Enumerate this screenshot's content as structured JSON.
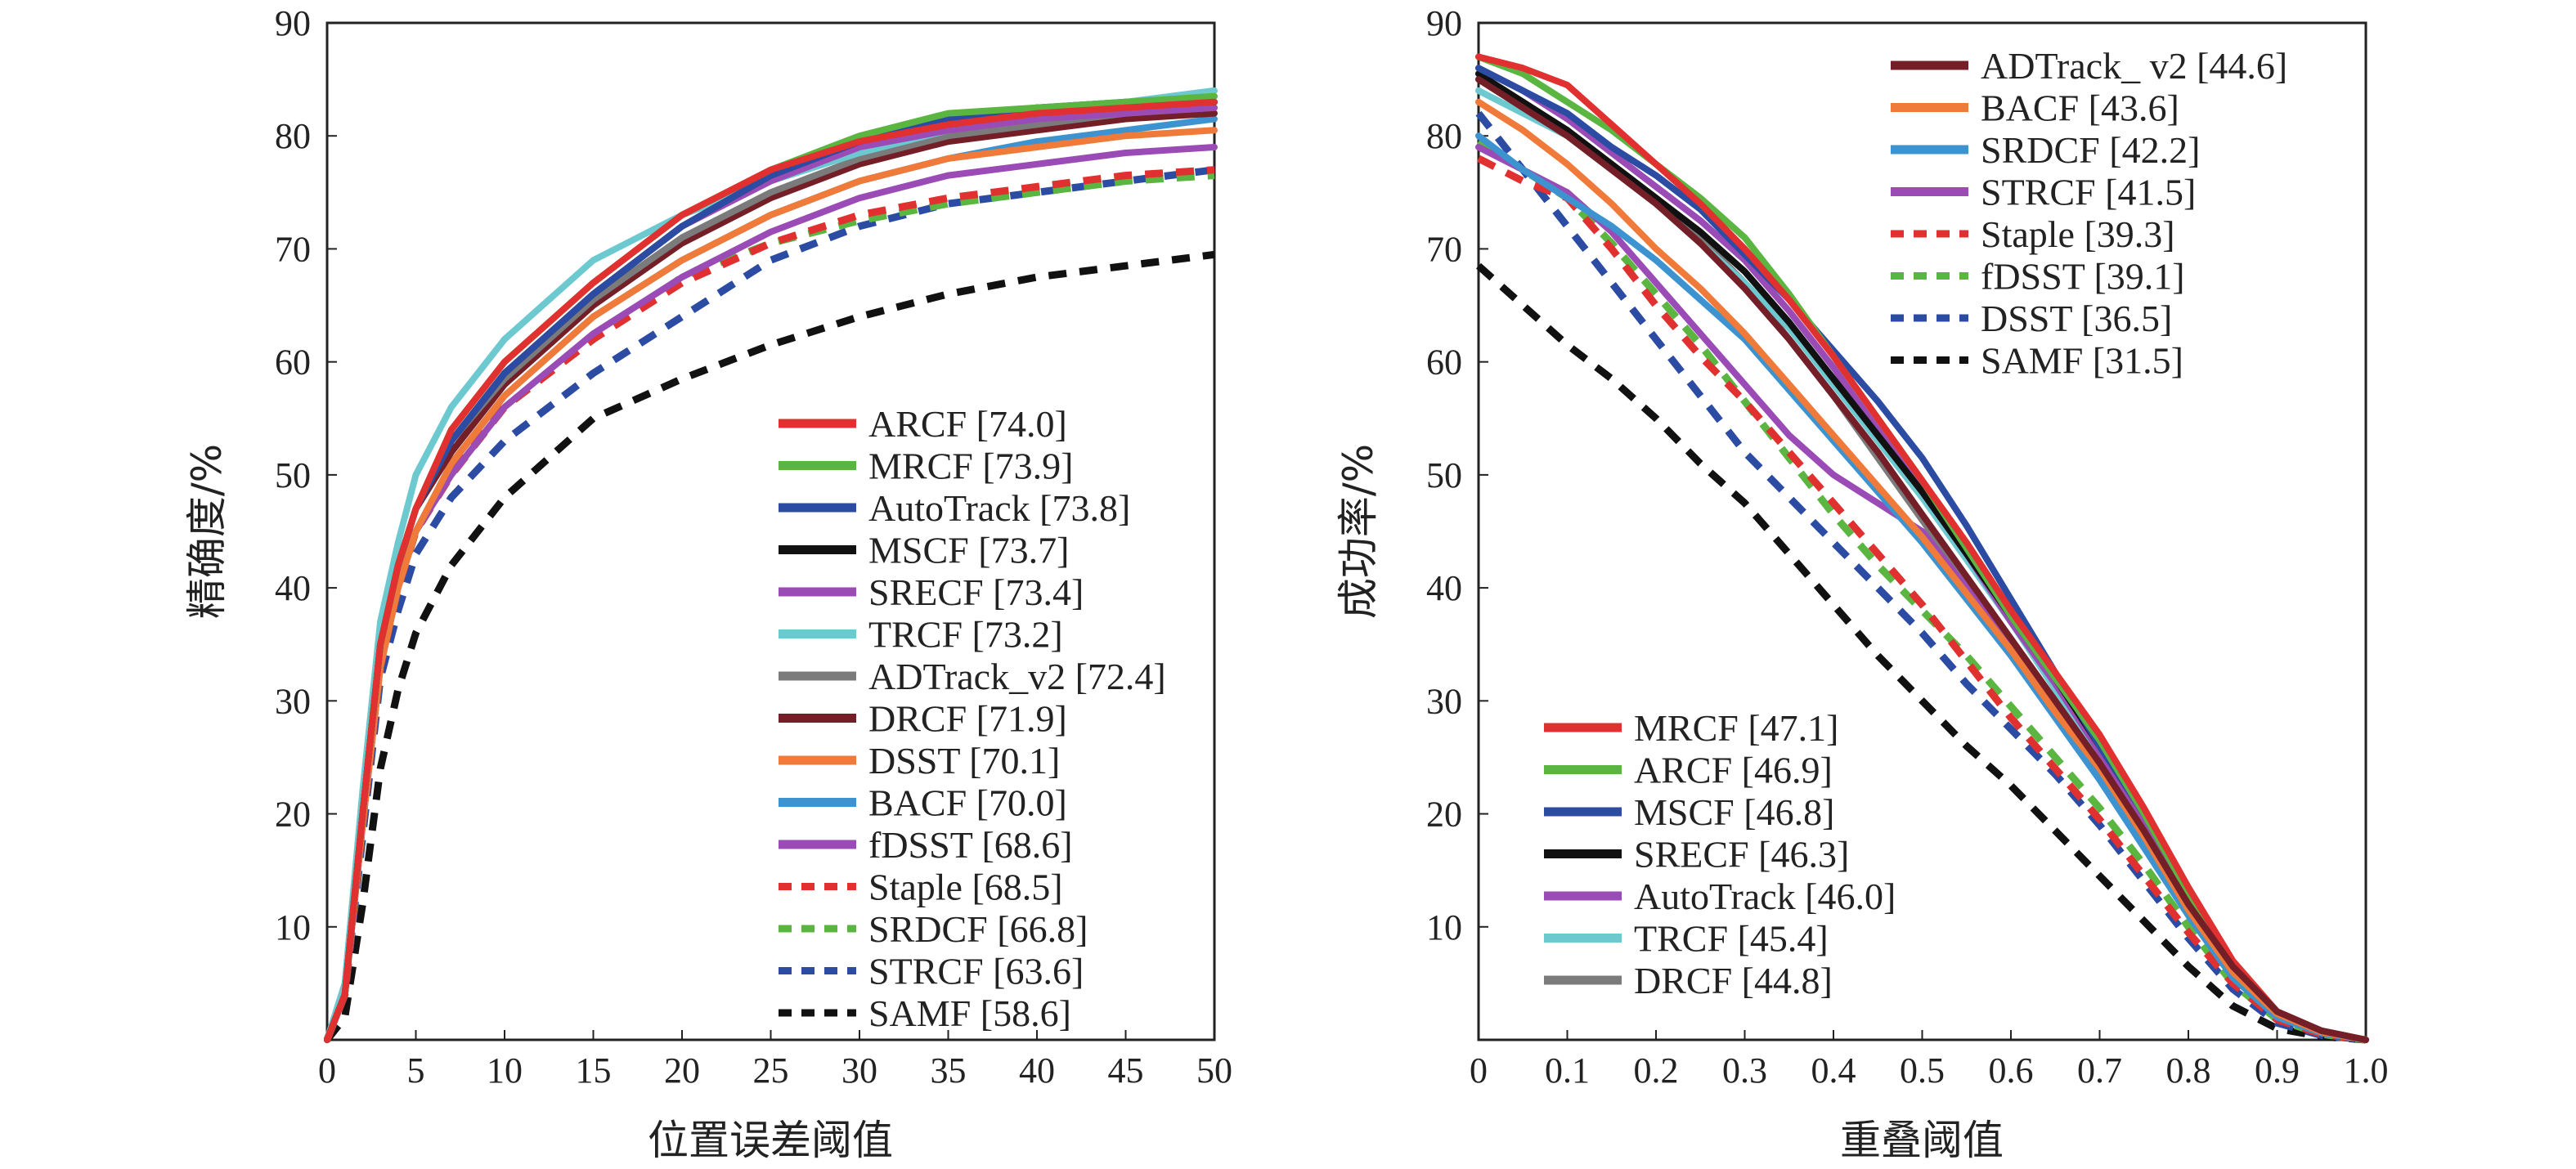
{
  "colors": {
    "red": "#e03030",
    "green": "#5ab541",
    "blue": "#2c4ca3",
    "black": "#111111",
    "purple": "#9b4bb5",
    "cyan": "#6cc9cf",
    "gray": "#7b7b7b",
    "darkred": "#741f28",
    "orange": "#ef7a3a",
    "lightblue": "#3d93d0"
  },
  "chart_data": [
    {
      "type": "line",
      "title": "",
      "xlabel": "位置误差阈值",
      "ylabel": "精确度/%",
      "xlim": [
        0,
        50
      ],
      "ylim": [
        0,
        90
      ],
      "xticks": [
        "0",
        "5",
        "10",
        "15",
        "20",
        "25",
        "30",
        "35",
        "40",
        "45",
        "50"
      ],
      "yticks": [
        "10",
        "20",
        "30",
        "40",
        "50",
        "60",
        "70",
        "80",
        "90"
      ],
      "legend_position": "bottom-right",
      "grid": false,
      "x": [
        0,
        1,
        2,
        3,
        4,
        5,
        7,
        10,
        15,
        20,
        25,
        30,
        35,
        40,
        45,
        50
      ],
      "series": [
        {
          "name": "ARCF [74.0]",
          "color": "red",
          "dash": false,
          "values": [
            0,
            4,
            20,
            35,
            42,
            47,
            54,
            60,
            67,
            73,
            77,
            79.5,
            81,
            82,
            82.5,
            83
          ]
        },
        {
          "name": "MRCF [73.9]",
          "color": "green",
          "dash": false,
          "values": [
            0,
            4,
            20,
            35,
            42,
            47,
            54,
            60,
            67,
            73,
            77,
            80,
            82,
            82.5,
            83,
            83.5
          ]
        },
        {
          "name": "AutoTrack [73.8]",
          "color": "blue",
          "dash": false,
          "values": [
            0,
            4,
            20,
            35,
            42,
            47,
            53,
            59,
            66,
            72,
            76.5,
            79.5,
            81.5,
            82.5,
            83,
            83
          ]
        },
        {
          "name": "MSCF [73.7]",
          "color": "black",
          "dash": false,
          "values": [
            0,
            4,
            20,
            35,
            42,
            47,
            53,
            59,
            66,
            72,
            76.5,
            79.5,
            81.5,
            82.5,
            82.8,
            83
          ]
        },
        {
          "name": "SRECF [73.4]",
          "color": "purple",
          "dash": false,
          "values": [
            0,
            4,
            20,
            35,
            42,
            47,
            53,
            59,
            66,
            72,
            76,
            79,
            80.5,
            81.5,
            82,
            82.5
          ]
        },
        {
          "name": "TRCF [73.2]",
          "color": "cyan",
          "dash": false,
          "values": [
            0,
            5,
            22,
            37,
            44,
            50,
            56,
            62,
            69,
            73,
            76,
            78.5,
            80.5,
            82,
            83,
            84
          ]
        },
        {
          "name": "ADTrack_v2 [72.4]",
          "color": "gray",
          "dash": false,
          "values": [
            0,
            4,
            20,
            35,
            42,
            47,
            53,
            58.5,
            65.5,
            71,
            75,
            78,
            80,
            81,
            82,
            82.5
          ]
        },
        {
          "name": "DRCF [71.9]",
          "color": "darkred",
          "dash": false,
          "values": [
            0,
            4,
            20,
            35,
            42,
            47,
            52,
            58,
            65,
            70.5,
            74.5,
            77.5,
            79.5,
            80.5,
            81.5,
            82
          ]
        },
        {
          "name": "DSST [70.1]",
          "color": "orange",
          "dash": false,
          "values": [
            0,
            4,
            19,
            33,
            40,
            45,
            51,
            57,
            64,
            69,
            73,
            76,
            78,
            79,
            80,
            80.5
          ]
        },
        {
          "name": "BACF [70.0]",
          "color": "lightblue",
          "dash": false,
          "values": [
            0,
            4,
            19,
            33,
            40,
            45,
            51,
            57,
            64,
            69,
            73,
            76,
            78,
            79.5,
            80.5,
            81.5
          ]
        },
        {
          "name": "fDSST [68.6]",
          "color": "purple",
          "dash": false,
          "values": [
            0,
            4,
            19,
            33,
            40,
            45,
            50,
            56,
            62.5,
            67.5,
            71.5,
            74.5,
            76.5,
            77.5,
            78.5,
            79
          ]
        },
        {
          "name": "Staple [68.5]",
          "color": "red",
          "dash": true,
          "values": [
            0,
            4,
            19,
            33,
            40,
            45,
            50,
            56,
            62,
            67,
            70.5,
            73,
            74.5,
            75.5,
            76.5,
            77
          ]
        },
        {
          "name": "SRDCF [66.8]",
          "color": "green",
          "dash": true,
          "values": [
            0,
            4,
            19,
            33,
            40,
            45,
            50,
            56,
            62,
            67.5,
            70.5,
            72.5,
            74,
            75,
            76,
            76.5
          ]
        },
        {
          "name": "STRCF [63.6]",
          "color": "blue",
          "dash": true,
          "values": [
            0,
            4,
            18,
            32,
            38,
            43,
            48,
            53,
            59,
            64,
            69,
            72,
            74,
            75,
            76,
            77
          ]
        },
        {
          "name": "SAMF [58.6]",
          "color": "black",
          "dash": true,
          "values": [
            0,
            2,
            12,
            24,
            31,
            36,
            42,
            48,
            55,
            58.5,
            61.5,
            64,
            66,
            67.5,
            68.5,
            69.5
          ]
        }
      ]
    },
    {
      "type": "line",
      "title": "",
      "xlabel": "重叠阈值",
      "ylabel": "成功率/%",
      "xlim": [
        0,
        1
      ],
      "ylim": [
        0,
        90
      ],
      "xticks": [
        "0",
        "0.1",
        "0.2",
        "0.3",
        "0.4",
        "0.5",
        "0.6",
        "0.7",
        "0.8",
        "0.9",
        "1.0"
      ],
      "yticks": [
        "10",
        "20",
        "30",
        "40",
        "50",
        "60",
        "70",
        "80",
        "90"
      ],
      "grid": false,
      "legend_position": "top-right and bottom-left",
      "legends": [
        {
          "position": "top-right",
          "series_indices": [
            0,
            1,
            2,
            3,
            4,
            5,
            6,
            7
          ]
        },
        {
          "position": "bottom-left",
          "series_indices": [
            8,
            9,
            10,
            11,
            12,
            13,
            14
          ]
        }
      ],
      "x": [
        0,
        0.05,
        0.1,
        0.15,
        0.2,
        0.25,
        0.3,
        0.35,
        0.4,
        0.45,
        0.5,
        0.55,
        0.6,
        0.65,
        0.7,
        0.75,
        0.8,
        0.85,
        0.9,
        0.95,
        1.0
      ],
      "series": [
        {
          "name": "ADTrack_ v2 [44.6]",
          "color": "darkred",
          "dash": false,
          "values": [
            85,
            82.5,
            80,
            77,
            74,
            70.5,
            66.5,
            62,
            57,
            52,
            46.5,
            41,
            35.5,
            30,
            24.5,
            18.5,
            12,
            6.5,
            2.5,
            0.8,
            0
          ]
        },
        {
          "name": "BACF [43.6]",
          "color": "orange",
          "dash": false,
          "values": [
            83,
            80.5,
            77.5,
            74,
            70,
            66.5,
            62.5,
            58,
            53.5,
            49,
            44.5,
            39.5,
            34.5,
            29,
            24,
            18,
            11.5,
            6,
            2.3,
            0.7,
            0
          ]
        },
        {
          "name": "SRDCF [42.2]",
          "color": "lightblue",
          "dash": false,
          "values": [
            80,
            77,
            74.5,
            72,
            69,
            65.5,
            62,
            57.5,
            53,
            48.5,
            44,
            39,
            34,
            28.5,
            23,
            17,
            11,
            5.5,
            2,
            0.6,
            0
          ]
        },
        {
          "name": "STRCF [41.5]",
          "color": "purple",
          "dash": false,
          "values": [
            79,
            77,
            75,
            71.5,
            67,
            62.5,
            58,
            53.5,
            50,
            47.5,
            45,
            40,
            35,
            29.5,
            24,
            18,
            11.5,
            6,
            2.2,
            0.6,
            0
          ]
        },
        {
          "name": "Staple [39.3]",
          "color": "red",
          "dash": true,
          "values": [
            78,
            76,
            74.5,
            70,
            65,
            60.5,
            56.5,
            52,
            47.5,
            43,
            38.5,
            33.5,
            28.5,
            24,
            19.5,
            14.5,
            9.5,
            5,
            1.8,
            0.5,
            0
          ]
        },
        {
          "name": "fDSST [39.1]",
          "color": "green",
          "dash": true,
          "values": [
            79.5,
            77,
            74.5,
            70.5,
            66,
            61.5,
            56.5,
            51.5,
            46.5,
            42,
            38,
            34,
            29.5,
            25,
            20.5,
            15.5,
            10,
            5,
            1.8,
            0.5,
            0
          ]
        },
        {
          "name": "DSST [36.5]",
          "color": "blue",
          "dash": true,
          "values": [
            82,
            77,
            72,
            67,
            62,
            57,
            52,
            48,
            44,
            40,
            36,
            31.5,
            27.5,
            23.5,
            19,
            14,
            9,
            4.5,
            1.5,
            0.4,
            0
          ]
        },
        {
          "name": "SAMF [31.5]",
          "color": "black",
          "dash": true,
          "values": [
            68.5,
            65,
            61.5,
            58.5,
            55,
            51,
            47.5,
            43,
            38.5,
            34,
            30,
            26,
            22.5,
            18.5,
            14.5,
            10.5,
            6.5,
            3,
            1,
            0.3,
            0
          ]
        },
        {
          "name": "MRCF [47.1]",
          "color": "red",
          "dash": false,
          "values": [
            87,
            86,
            84.5,
            81,
            77.5,
            74,
            70,
            65.5,
            60.5,
            55,
            49.5,
            44,
            38,
            32.5,
            27,
            20.5,
            13.5,
            7,
            2.5,
            0.8,
            0
          ]
        },
        {
          "name": "ARCF [46.9]",
          "color": "green",
          "dash": false,
          "values": [
            87,
            85.5,
            83,
            80.5,
            77.5,
            74.5,
            71,
            66,
            60.5,
            55,
            49.5,
            43.5,
            37.5,
            32,
            26.5,
            20,
            13,
            6.5,
            2.4,
            0.8,
            0
          ]
        },
        {
          "name": "MSCF [46.8]",
          "color": "blue",
          "dash": false,
          "values": [
            86,
            84,
            82,
            79,
            76.5,
            73.5,
            69.5,
            65.5,
            61,
            56.5,
            51.5,
            45.5,
            39,
            32.5,
            26,
            20,
            13,
            6.5,
            2.4,
            0.8,
            0
          ]
        },
        {
          "name": "SRECF [46.3]",
          "color": "black",
          "dash": false,
          "values": [
            85.5,
            83,
            80.5,
            77.5,
            74.5,
            71.5,
            68,
            63.5,
            58.5,
            53.5,
            48.5,
            43,
            37.5,
            32,
            26,
            20,
            13,
            6.5,
            2.4,
            0.8,
            0
          ]
        },
        {
          "name": "AutoTrack [46.0]",
          "color": "purple",
          "dash": false,
          "values": [
            86,
            84,
            81.5,
            78.5,
            75.5,
            72.5,
            69,
            64.5,
            59.5,
            54,
            48.5,
            43,
            37,
            31.5,
            25.5,
            19.5,
            12.5,
            6.3,
            2.3,
            0.8,
            0
          ]
        },
        {
          "name": "TRCF [45.4]",
          "color": "cyan",
          "dash": false,
          "values": [
            84,
            82,
            80,
            77,
            74,
            70.5,
            67,
            63,
            58,
            53,
            48,
            42.5,
            37,
            31,
            25,
            19,
            12,
            6,
            2.2,
            0.7,
            0
          ]
        },
        {
          "name": "DRCF [44.8]",
          "color": "gray",
          "dash": false,
          "values": [
            85,
            83,
            80.5,
            77.5,
            74.5,
            71,
            67,
            62,
            57,
            51.5,
            46,
            40.5,
            35,
            29.5,
            24,
            18,
            11.5,
            6,
            2.2,
            0.7,
            0
          ]
        }
      ]
    }
  ]
}
